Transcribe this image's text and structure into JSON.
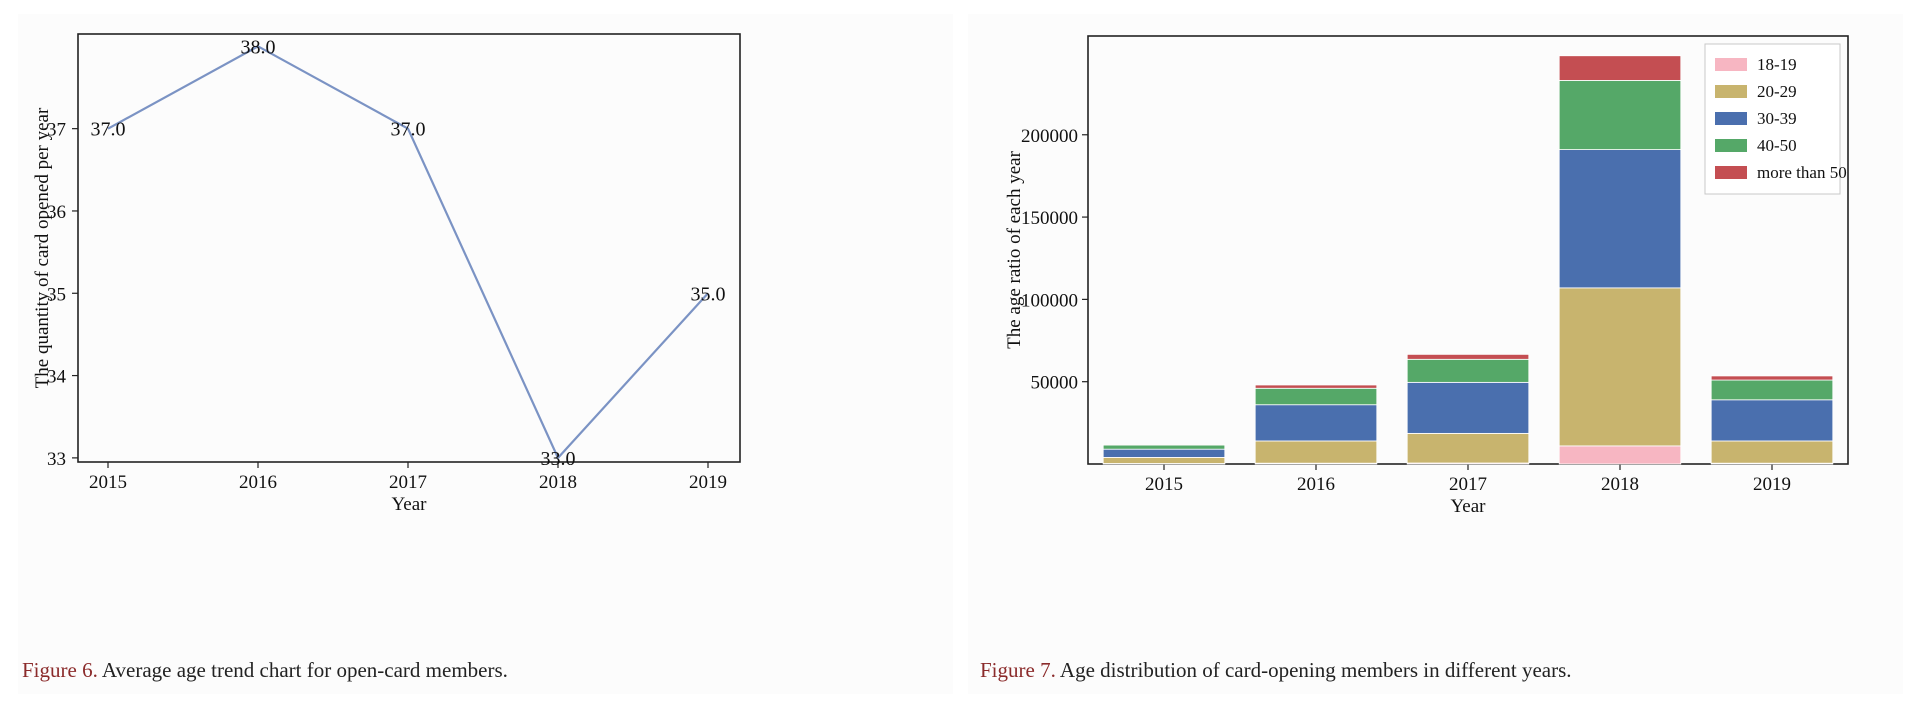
{
  "chart_data": [
    {
      "type": "line",
      "x": [
        2015,
        2016,
        2017,
        2018,
        2019
      ],
      "values": [
        37.0,
        38.0,
        37.0,
        33.0,
        35.0
      ],
      "data_labels": [
        "37.0",
        "38.0",
        "37.0",
        "33.0",
        "35.0"
      ],
      "xlabel": "Year",
      "ylabel": "The quantity of card opened per year",
      "xticks": [
        "2015",
        "2016",
        "2017",
        "2018",
        "2019"
      ],
      "yticks": [
        33,
        34,
        35,
        36,
        37
      ],
      "ylim": [
        32.95,
        38.15
      ],
      "color": "#7b93c4",
      "grid": false,
      "caption_label": "Figure 6.",
      "caption_text": " Average age trend chart for open-card members."
    },
    {
      "type": "bar",
      "stacked": true,
      "categories": [
        "2015",
        "2016",
        "2017",
        "2018",
        "2019"
      ],
      "series": [
        {
          "name": "18-19",
          "color": "#f7b6c2",
          "values": [
            300,
            500,
            600,
            11000,
            500
          ]
        },
        {
          "name": "20-29",
          "color": "#c8b46e",
          "values": [
            3700,
            13500,
            18000,
            96000,
            13500
          ]
        },
        {
          "name": "30-39",
          "color": "#4a6fae",
          "values": [
            5000,
            22000,
            31000,
            84000,
            25000
          ]
        },
        {
          "name": "40-50",
          "color": "#55a868",
          "values": [
            2500,
            10000,
            14000,
            42000,
            12000
          ]
        },
        {
          "name": "more than 50",
          "color": "#c44e52",
          "values": [
            500,
            2000,
            3000,
            15000,
            2500
          ]
        }
      ],
      "xlabel": "Year",
      "ylabel": "The age ratio of each year",
      "yticks": [
        50000,
        100000,
        150000,
        200000
      ],
      "ylim": [
        0,
        260000
      ],
      "grid": false,
      "legend": "top-right",
      "caption_label": "Figure 7.",
      "caption_text": " Age distribution of card-opening members in different years."
    }
  ]
}
